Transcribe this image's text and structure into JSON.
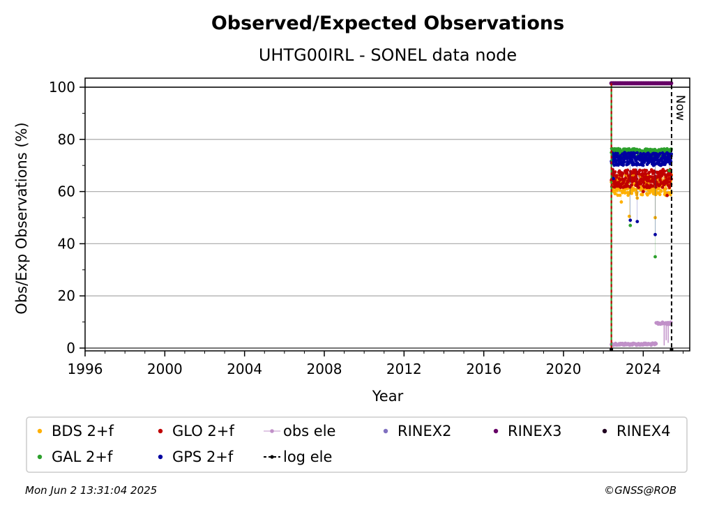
{
  "chart_data": {
    "type": "scatter",
    "title": "Observed/Expected Observations",
    "subtitle": "UHTG00IRL - SONEL data node",
    "xlabel": "Year",
    "ylabel": "Obs/Exp Observations (%)",
    "xlim": [
      1996,
      2026.3
    ],
    "ylim": [
      -1,
      103.5
    ],
    "xticks": [
      1996,
      2000,
      2004,
      2008,
      2012,
      2016,
      2020,
      2024
    ],
    "yticks": [
      0,
      20,
      40,
      60,
      80,
      100
    ],
    "grid": "horizontal",
    "reference_line_y": 100,
    "start_year": 2022.4,
    "now_year": 2025.42,
    "now_label": "Now",
    "legend_position": "below",
    "legend": [
      {
        "label": "BDS 2+f",
        "color": "#ffb000",
        "marker": "dot"
      },
      {
        "label": "GLO 2+f",
        "color": "#c00000",
        "marker": "dot"
      },
      {
        "label": "obs ele",
        "color": "#c090c8",
        "marker": "line-dot"
      },
      {
        "label": "RINEX2",
        "color": "#8070c0",
        "marker": "dot"
      },
      {
        "label": "RINEX3",
        "color": "#660066",
        "marker": "dot"
      },
      {
        "label": "RINEX4",
        "color": "#200020",
        "marker": "dot"
      },
      {
        "label": "GAL 2+f",
        "color": "#2ca02c",
        "marker": "dot"
      },
      {
        "label": "GPS 2+f",
        "color": "#0000a0",
        "marker": "dot"
      },
      {
        "label": "log ele",
        "color": "#000000",
        "marker": "dash-dot"
      }
    ],
    "series": [
      {
        "name": "RINEX3",
        "color": "#660066",
        "x_range": [
          2022.4,
          2025.42
        ],
        "y_mean": 101.5,
        "y_spread": 0,
        "outliers": []
      },
      {
        "name": "GAL 2+f",
        "color": "#2ca02c",
        "x_range": [
          2022.4,
          2025.42
        ],
        "y_mean": 75,
        "y_spread": 1.5,
        "outliers": [
          [
            2023.35,
            47
          ],
          [
            2024.6,
            35
          ],
          [
            2025.3,
            68
          ]
        ]
      },
      {
        "name": "GPS 2+f",
        "color": "#0000a0",
        "x_range": [
          2022.4,
          2025.42
        ],
        "y_mean": 72.5,
        "y_spread": 2.5,
        "outliers": [
          [
            2023.35,
            49
          ],
          [
            2023.7,
            48.5
          ],
          [
            2024.6,
            43.5
          ],
          [
            2022.5,
            65
          ]
        ]
      },
      {
        "name": "GLO 2+f",
        "color": "#c00000",
        "x_range": [
          2022.4,
          2025.42
        ],
        "y_mean": 65,
        "y_spread": 3.5,
        "outliers": [
          [
            2024.0,
            60
          ],
          [
            2025.2,
            58.5
          ]
        ]
      },
      {
        "name": "BDS 2+f",
        "color": "#ffb000",
        "x_range": [
          2022.4,
          2025.42
        ],
        "y_mean": 62.5,
        "y_spread": 4,
        "outliers": [
          [
            2022.9,
            56
          ],
          [
            2023.3,
            50.5
          ],
          [
            2024.6,
            50
          ],
          [
            2023.7,
            57.5
          ]
        ]
      },
      {
        "name": "obs ele",
        "color": "#c090c8",
        "segments": [
          [
            2022.4,
            2024.65,
            1.5
          ],
          [
            2024.65,
            2025.42,
            9.5
          ]
        ]
      }
    ]
  },
  "footer": {
    "timestamp": "Mon Jun  2 13:31:04 2025",
    "credit": "©GNSS@ROB"
  }
}
